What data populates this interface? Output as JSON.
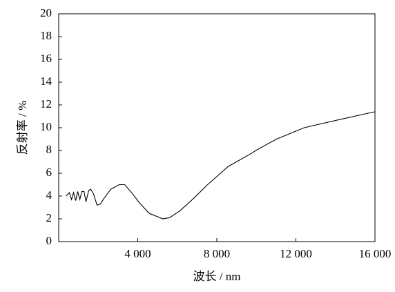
{
  "chart_data": {
    "type": "line",
    "x_label": "波长 / nm",
    "y_label": "反射率 / %",
    "series": [
      {
        "color": "#000000",
        "x": [
          370,
          540,
          650,
          750,
          860,
          960,
          1070,
          1170,
          1280,
          1380,
          1520,
          1620,
          1760,
          1940,
          2110,
          2290,
          2640,
          3060,
          3340,
          3690,
          4040,
          4560,
          5260,
          5610,
          6130,
          6830,
          7530,
          8580,
          9800,
          9970,
          11020,
          12420,
          14170,
          16000
        ],
        "values": [
          4.0,
          4.3,
          3.7,
          4.3,
          3.6,
          4.4,
          3.7,
          4.4,
          4.4,
          3.5,
          4.5,
          4.6,
          4.2,
          3.2,
          3.3,
          3.8,
          4.6,
          5.0,
          5.0,
          4.3,
          3.5,
          2.5,
          2.0,
          2.1,
          2.7,
          3.8,
          5.0,
          6.6,
          7.8,
          8.0,
          9.0,
          10.0,
          10.7,
          11.4
        ]
      }
    ],
    "xlim": [
      0,
      16000
    ],
    "xticks": [
      {
        "value": 4000,
        "label": "4 000"
      },
      {
        "value": 8000,
        "label": "8 000"
      },
      {
        "value": 12000,
        "label": "12 000"
      },
      {
        "value": 16000,
        "label": "16 000"
      }
    ],
    "ylim": [
      0,
      20
    ],
    "yticks": [
      0,
      2,
      4,
      6,
      8,
      10,
      12,
      14,
      16,
      18,
      20
    ]
  }
}
